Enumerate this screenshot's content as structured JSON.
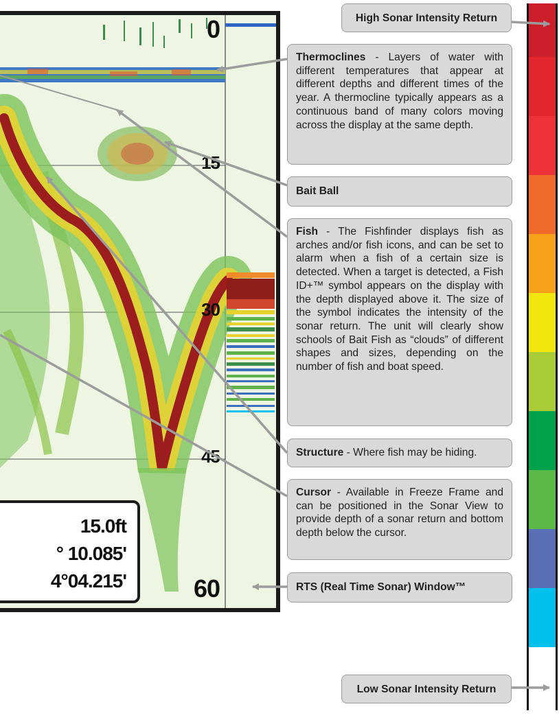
{
  "sonar": {
    "depth_scale": [
      "0",
      "15",
      "30",
      "45",
      "60"
    ],
    "readout": {
      "depth": "15.0ft",
      "lat": "° 10.085'",
      "lon": "4°04.215'"
    }
  },
  "callouts": {
    "high_intensity": "High Sonar Intensity Return",
    "thermoclines_title": "Thermoclines",
    "thermoclines_text": " - Layers of water with different temperatures that appear at different depths and different times of the year. A thermocline typically appears as a continuous band of many colors moving across the display at the same depth.",
    "bait_ball": "Bait Ball",
    "fish_title": "Fish",
    "fish_text": " - The Fishfinder displays fish as arches and/or fish icons, and can be set to alarm when a fish of a certain size is detected. When a target is detected, a Fish ID+™ symbol appears on the display with the depth displayed above it. The size of the symbol indicates the intensity of the sonar return. The unit will clearly show schools of Bait Fish as “clouds” of different shapes and sizes, depending on the number of fish and boat speed.",
    "structure_title": "Structure",
    "structure_text": " - Where fish may be hiding.",
    "cursor_title": "Cursor",
    "cursor_text": " - Available in Freeze Frame and can be positioned in the Sonar View to provide depth of a sonar return and bottom depth below the cursor.",
    "rts": "RTS (Real Time Sonar) Window™",
    "low_intensity": "Low Sonar Intensity Return"
  },
  "colors": {
    "intensity_scale": [
      "#cc1f2b",
      "#e3252c",
      "#ee3238",
      "#ef6a2a",
      "#f8a21b",
      "#f1e60d",
      "#a9cc37",
      "#00a24b",
      "#5ab947",
      "#5a6fb6",
      "#00c0ee",
      "#ffffff"
    ],
    "callout_bg": "#d9d9da",
    "callout_border": "#9c9c9c",
    "sonar_bg": "#eef5e2"
  }
}
